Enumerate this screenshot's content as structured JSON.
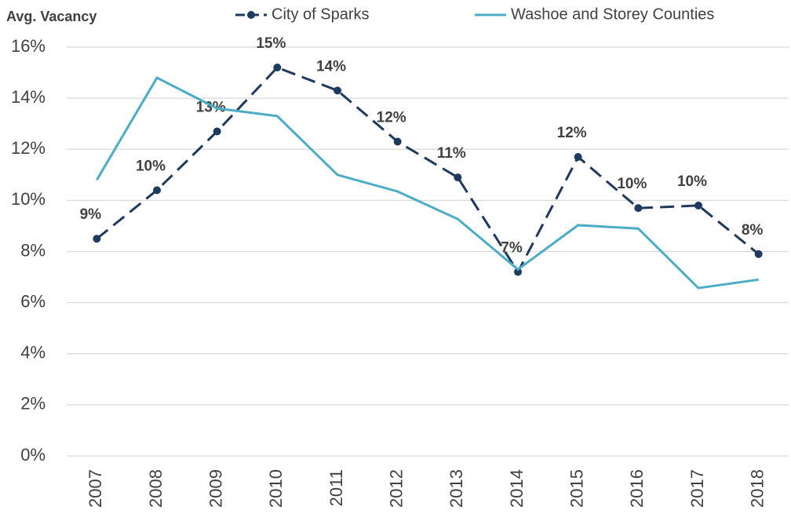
{
  "chart_data": {
    "type": "line",
    "y_label": "Avg. Vacancy",
    "categories": [
      "2007",
      "2008",
      "2009",
      "2010",
      "2011",
      "2012",
      "2013",
      "2014",
      "2015",
      "2016",
      "2017",
      "2018"
    ],
    "series": [
      {
        "name": "City of Sparks",
        "color": "#1f3a5f",
        "dashed": true,
        "markers": true,
        "values": [
          8.5,
          10.4,
          12.7,
          15.2,
          14.3,
          12.3,
          10.9,
          7.2,
          11.7,
          9.7,
          9.8,
          7.9
        ],
        "value_labels": [
          "9%",
          "10%",
          "13%",
          "15%",
          "14%",
          "12%",
          "11%",
          "7%",
          "12%",
          "10%",
          "10%",
          "8%"
        ]
      },
      {
        "name": "Washoe and Storey Counties",
        "color": "#4bacc6",
        "dashed": false,
        "markers": false,
        "values": [
          10.8,
          14.8,
          13.6,
          13.3,
          11.0,
          10.35,
          9.27,
          7.3,
          9.03,
          8.9,
          6.57,
          6.9
        ]
      }
    ],
    "ylim": [
      0,
      16
    ],
    "yticks": [
      {
        "value": 0,
        "label": "0%"
      },
      {
        "value": 2,
        "label": "2%"
      },
      {
        "value": 4,
        "label": "4%"
      },
      {
        "value": 6,
        "label": "6%"
      },
      {
        "value": 8,
        "label": "8%"
      },
      {
        "value": 10,
        "label": "10%"
      },
      {
        "value": 12,
        "label": "12%"
      },
      {
        "value": 14,
        "label": "14%"
      },
      {
        "value": 16,
        "label": "16%"
      }
    ],
    "grid": true
  }
}
